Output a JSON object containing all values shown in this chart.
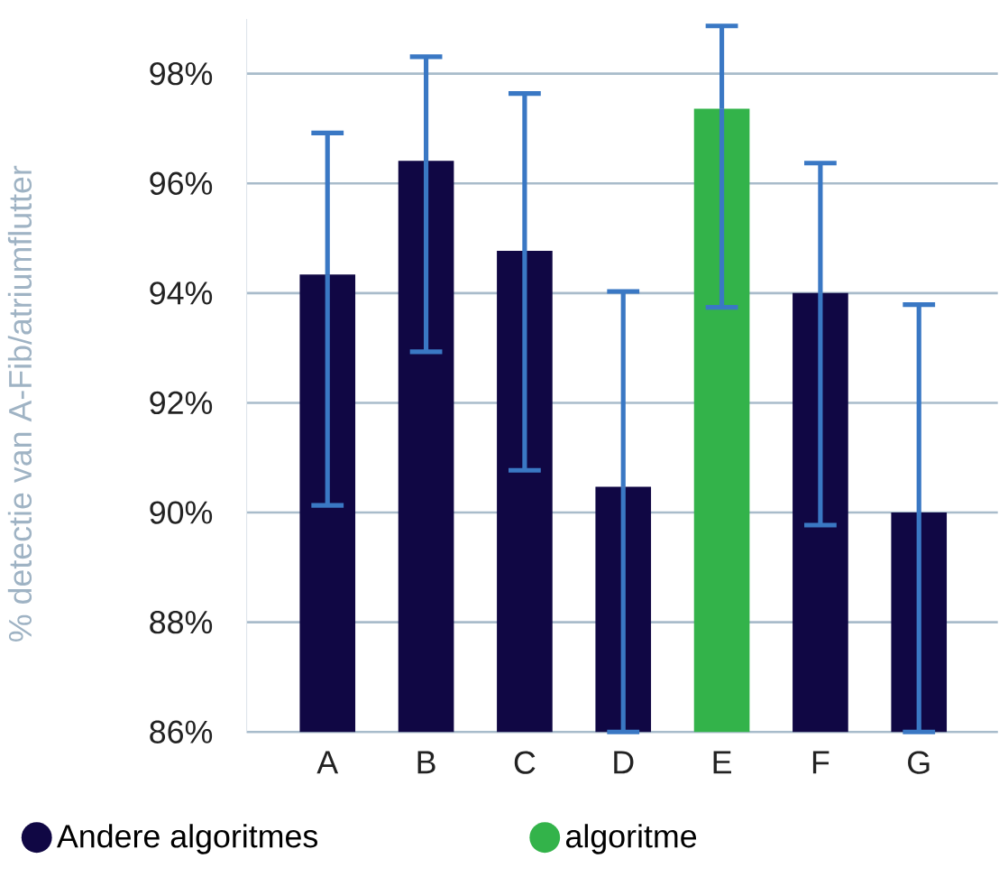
{
  "chart_data": {
    "type": "bar",
    "ylabel": "% detectie van A-Fib/atriumflutter",
    "categories": [
      "A",
      "B",
      "C",
      "D",
      "E",
      "F",
      "G"
    ],
    "series": [
      {
        "name": "Andere algoritmes",
        "color": "#100744",
        "values": [
          94.34,
          96.41,
          94.77,
          90.47,
          null,
          94.0,
          90.0
        ],
        "errors": [
          [
            90.13,
            96.92
          ],
          [
            92.93,
            98.31
          ],
          [
            90.77,
            97.64
          ],
          [
            86,
            94.03
          ],
          null,
          [
            89.77,
            96.37
          ],
          [
            86,
            93.79
          ]
        ]
      },
      {
        "name": "algoritme",
        "color": "#33b34a",
        "values": [
          null,
          null,
          null,
          null,
          97.36,
          null,
          null
        ],
        "errors": [
          null,
          null,
          null,
          null,
          [
            93.74,
            98.87
          ],
          null,
          null
        ]
      }
    ],
    "ylim": [
      86,
      99
    ],
    "yticks": [
      {
        "value": 86,
        "label": "86%"
      },
      {
        "value": 88,
        "label": "88%"
      },
      {
        "value": 90,
        "label": "90%"
      },
      {
        "value": 92,
        "label": "92%"
      },
      {
        "value": 94,
        "label": "94%"
      },
      {
        "value": 96,
        "label": "96%"
      },
      {
        "value": 98,
        "label": "98%"
      }
    ],
    "grid": "y",
    "legend": "bottom"
  }
}
